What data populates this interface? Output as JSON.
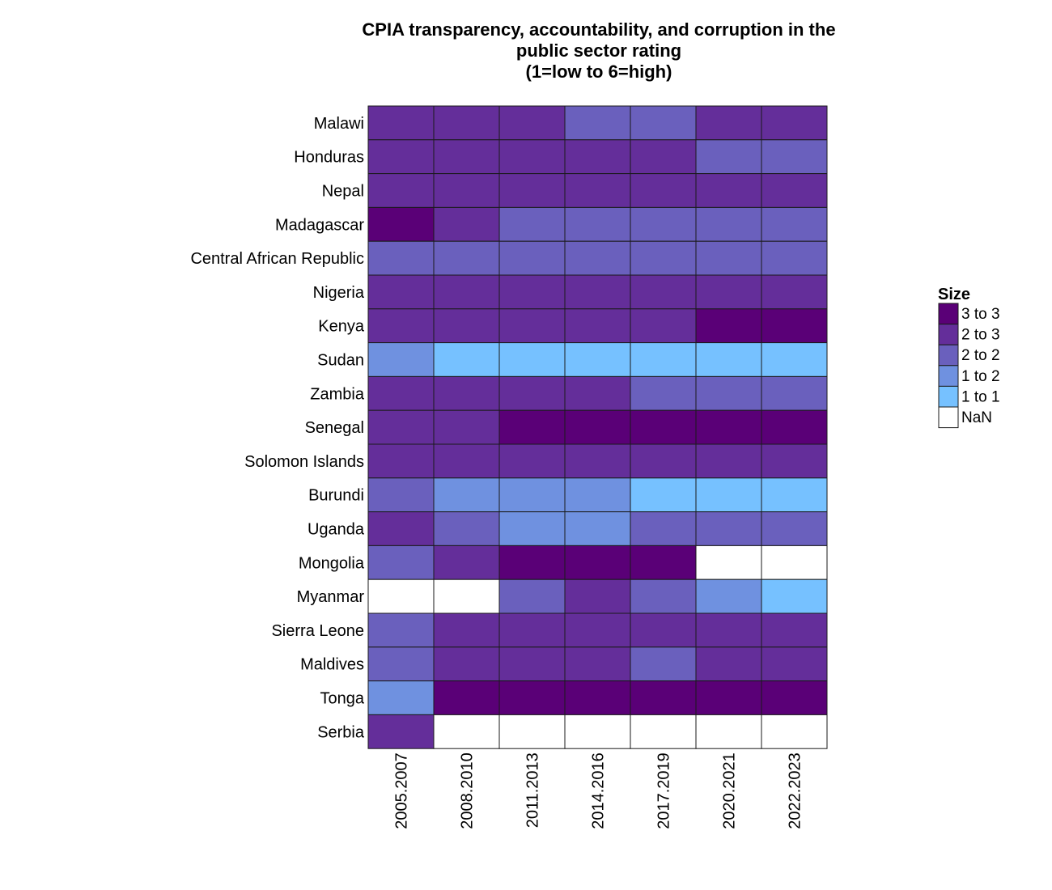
{
  "chart_data": {
    "type": "heatmap",
    "title_lines": [
      "CPIA transparency, accountability, and corruption in the",
      "public sector rating",
      "(1=low to 6=high)"
    ],
    "x_categories": [
      "2005.2007",
      "2008.2010",
      "2011.2013",
      "2014.2016",
      "2017.2019",
      "2020.2021",
      "2022.2023"
    ],
    "y_categories": [
      "Malawi",
      "Honduras",
      "Nepal",
      "Madagascar",
      "Central African Republic",
      "Nigeria",
      "Kenya",
      "Sudan",
      "Zambia",
      "Senegal",
      "Solomon Islands",
      "Burundi",
      "Uganda",
      "Mongolia",
      "Myanmar",
      "Sierra Leone",
      "Maldives",
      "Tonga",
      "Serbia"
    ],
    "cells": [
      [
        "2 to 3",
        "2 to 3",
        "2 to 3",
        "2 to 2",
        "2 to 2",
        "2 to 3",
        "2 to 3"
      ],
      [
        "2 to 3",
        "2 to 3",
        "2 to 3",
        "2 to 3",
        "2 to 3",
        "2 to 2",
        "2 to 2"
      ],
      [
        "2 to 3",
        "2 to 3",
        "2 to 3",
        "2 to 3",
        "2 to 3",
        "2 to 3",
        "2 to 3"
      ],
      [
        "3 to 3",
        "2 to 3",
        "2 to 2",
        "2 to 2",
        "2 to 2",
        "2 to 2",
        "2 to 2"
      ],
      [
        "2 to 2",
        "2 to 2",
        "2 to 2",
        "2 to 2",
        "2 to 2",
        "2 to 2",
        "2 to 2"
      ],
      [
        "2 to 3",
        "2 to 3",
        "2 to 3",
        "2 to 3",
        "2 to 3",
        "2 to 3",
        "2 to 3"
      ],
      [
        "2 to 3",
        "2 to 3",
        "2 to 3",
        "2 to 3",
        "2 to 3",
        "3 to 3",
        "3 to 3"
      ],
      [
        "1 to 2",
        "1 to 1",
        "1 to 1",
        "1 to 1",
        "1 to 1",
        "1 to 1",
        "1 to 1"
      ],
      [
        "2 to 3",
        "2 to 3",
        "2 to 3",
        "2 to 3",
        "2 to 2",
        "2 to 2",
        "2 to 2"
      ],
      [
        "2 to 3",
        "2 to 3",
        "3 to 3",
        "3 to 3",
        "3 to 3",
        "3 to 3",
        "3 to 3"
      ],
      [
        "2 to 3",
        "2 to 3",
        "2 to 3",
        "2 to 3",
        "2 to 3",
        "2 to 3",
        "2 to 3"
      ],
      [
        "2 to 2",
        "1 to 2",
        "1 to 2",
        "1 to 2",
        "1 to 1",
        "1 to 1",
        "1 to 1"
      ],
      [
        "2 to 3",
        "2 to 2",
        "1 to 2",
        "1 to 2",
        "2 to 2",
        "2 to 2",
        "2 to 2"
      ],
      [
        "2 to 2",
        "2 to 3",
        "3 to 3",
        "3 to 3",
        "3 to 3",
        "NaN",
        "NaN"
      ],
      [
        "NaN",
        "NaN",
        "2 to 2",
        "2 to 3",
        "2 to 2",
        "1 to 2",
        "1 to 1"
      ],
      [
        "2 to 2",
        "2 to 3",
        "2 to 3",
        "2 to 3",
        "2 to 3",
        "2 to 3",
        "2 to 3"
      ],
      [
        "2 to 2",
        "2 to 3",
        "2 to 3",
        "2 to 3",
        "2 to 2",
        "2 to 3",
        "2 to 3"
      ],
      [
        "1 to 2",
        "3 to 3",
        "3 to 3",
        "3 to 3",
        "3 to 3",
        "3 to 3",
        "3 to 3"
      ],
      [
        "2 to 3",
        "NaN",
        "NaN",
        "NaN",
        "NaN",
        "NaN",
        "NaN"
      ]
    ],
    "legend": {
      "title": "Size",
      "placement": "right",
      "entries": [
        {
          "label": "3 to 3",
          "color": "#5a0077"
        },
        {
          "label": "2 to 3",
          "color": "#642e9a"
        },
        {
          "label": "2 to 2",
          "color": "#6a60bd"
        },
        {
          "label": "1 to 2",
          "color": "#6f91e0"
        },
        {
          "label": "1 to 1",
          "color": "#76c1ff"
        },
        {
          "label": "NaN",
          "color": "#ffffff"
        }
      ]
    },
    "grid": false
  }
}
